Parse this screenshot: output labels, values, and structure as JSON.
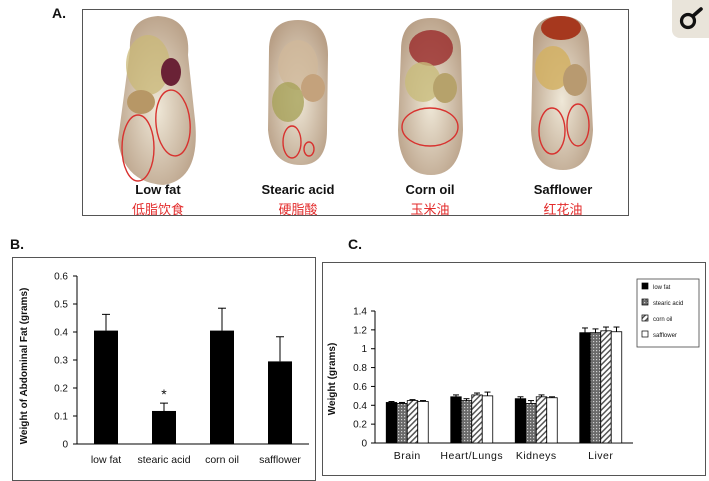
{
  "panels": {
    "a": "A.",
    "b": "B.",
    "c": "C."
  },
  "mice": [
    {
      "en": "Low fat",
      "zh": "低脂饮食"
    },
    {
      "en": "Stearic acid",
      "zh": "硬脂酸"
    },
    {
      "en": "Corn oil",
      "zh": "玉米油"
    },
    {
      "en": "Safflower",
      "zh": "红花油"
    }
  ],
  "colors": {
    "bar_black": "#000000",
    "highlight_circle": "#d8322f",
    "caption_red": "#e32b2b",
    "border": "#555555"
  },
  "icon": "search-icon",
  "chart_data": [
    {
      "type": "bar",
      "title": "",
      "xlabel": "",
      "ylabel": "Weight of Abdominal Fat (grams)",
      "categories": [
        "low fat",
        "stearic acid",
        "corn oil",
        "safflower"
      ],
      "values": [
        0.405,
        0.118,
        0.405,
        0.295
      ],
      "errors": [
        0.058,
        0.028,
        0.08,
        0.088
      ],
      "annotations": [
        {
          "category": "stearic acid",
          "text": "*"
        }
      ],
      "ylim": [
        0,
        0.6
      ],
      "yticks": [
        "0",
        "0.1",
        "0.2",
        "0.3",
        "0.4",
        "0.5",
        "0.6"
      ],
      "grid": false
    },
    {
      "type": "bar",
      "title": "",
      "xlabel": "",
      "ylabel": "Weight (grams)",
      "categories": [
        "Brain",
        "Heart/Lungs",
        "Kidneys",
        "Liver"
      ],
      "series": [
        {
          "name": "low fat",
          "values": [
            0.43,
            0.49,
            0.47,
            1.17
          ],
          "errors": [
            0.01,
            0.02,
            0.02,
            0.05
          ]
        },
        {
          "name": "stearic acid",
          "values": [
            0.42,
            0.45,
            0.42,
            1.17
          ],
          "errors": [
            0.01,
            0.02,
            0.03,
            0.04
          ]
        },
        {
          "name": "corn oil",
          "values": [
            0.45,
            0.51,
            0.49,
            1.19
          ],
          "errors": [
            0.01,
            0.02,
            0.02,
            0.04
          ]
        },
        {
          "name": "safflower",
          "values": [
            0.44,
            0.5,
            0.48,
            1.18
          ],
          "errors": [
            0.01,
            0.04,
            0.01,
            0.05
          ]
        }
      ],
      "ylim": [
        0,
        1.4
      ],
      "yticks": [
        "0",
        "0.2",
        "0.4",
        "0.6",
        "0.8",
        "1",
        "1.2",
        "1.4"
      ],
      "legend_position": "top-right",
      "grid": false
    }
  ]
}
